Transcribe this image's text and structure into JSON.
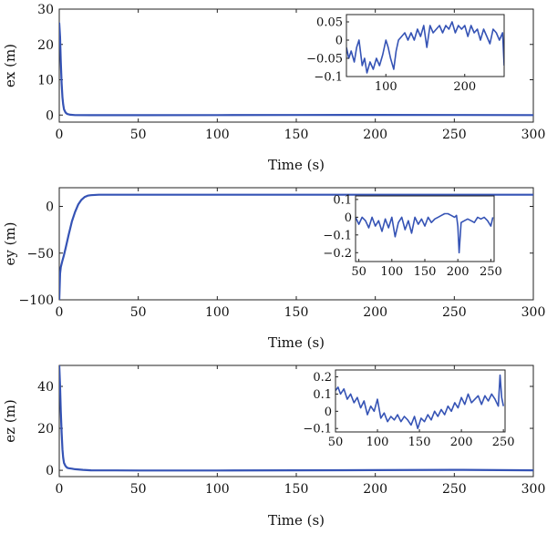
{
  "chart_data": [
    {
      "type": "line",
      "xlabel": "Time (s)",
      "ylabel": "ex (m)",
      "xlim": [
        0,
        300
      ],
      "ylim": [
        -2,
        30
      ],
      "xticks": [
        0,
        50,
        100,
        150,
        200,
        250,
        300
      ],
      "yticks": [
        0,
        10,
        20,
        30
      ],
      "series": [
        {
          "x": [
            0,
            0.5,
            1,
            1.5,
            2,
            2.5,
            3,
            4,
            5,
            7,
            10,
            20,
            50,
            100,
            150,
            200,
            250,
            300
          ],
          "y": [
            26,
            22,
            15,
            9,
            5,
            3,
            1.6,
            0.7,
            0.3,
            0.1,
            0.0,
            -0.05,
            -0.05,
            0.0,
            0.02,
            0.03,
            0.02,
            0.0
          ]
        }
      ],
      "inset": {
        "xlim": [
          50,
          250
        ],
        "ylim": [
          -0.1,
          0.07
        ],
        "xticks": [
          100,
          200
        ],
        "yticks": [
          0.05,
          0,
          -0.05,
          -0.1
        ],
        "yticklabels": [
          "0.05",
          "0",
          "−0.05",
          "−0.1"
        ],
        "series": [
          {
            "x": [
              50,
              53,
              56,
              60,
              63,
              66,
              70,
              73,
              76,
              80,
              84,
              88,
              92,
              96,
              100,
              103,
              106,
              110,
              113,
              116,
              120,
              124,
              128,
              132,
              136,
              140,
              144,
              148,
              152,
              156,
              160,
              164,
              168,
              172,
              176,
              180,
              184,
              188,
              192,
              196,
              200,
              204,
              208,
              212,
              216,
              220,
              224,
              228,
              232,
              236,
              240,
              244,
              248,
              250
            ],
            "y": [
              -0.02,
              -0.05,
              -0.03,
              -0.06,
              -0.02,
              0.0,
              -0.07,
              -0.05,
              -0.09,
              -0.06,
              -0.08,
              -0.05,
              -0.07,
              -0.04,
              0.0,
              -0.02,
              -0.05,
              -0.08,
              -0.03,
              0.0,
              0.01,
              0.02,
              0.0,
              0.02,
              0.0,
              0.03,
              0.01,
              0.04,
              -0.02,
              0.04,
              0.02,
              0.03,
              0.04,
              0.02,
              0.04,
              0.03,
              0.05,
              0.02,
              0.04,
              0.03,
              0.04,
              0.01,
              0.04,
              0.02,
              0.03,
              0.0,
              0.03,
              0.01,
              -0.01,
              0.03,
              0.02,
              0.0,
              0.02,
              -0.07
            ]
          }
        ]
      }
    },
    {
      "type": "line",
      "xlabel": "Time (s)",
      "ylabel": "ey (m)",
      "xlim": [
        0,
        300
      ],
      "ylim": [
        -100,
        20
      ],
      "xticks": [
        0,
        50,
        100,
        150,
        200,
        250,
        300
      ],
      "yticks": [
        0,
        -50,
        -100
      ],
      "yticklabels": [
        "0",
        "−50",
        "−100"
      ],
      "series": [
        {
          "x": [
            0,
            0.5,
            1,
            2,
            3,
            4,
            6,
            8,
            10,
            12,
            14,
            16,
            18,
            20,
            25,
            30,
            50,
            100,
            150,
            200,
            250,
            300
          ],
          "y": [
            -100,
            -72,
            -65,
            -58,
            -52,
            -45,
            -30,
            -16,
            -6,
            2,
            7,
            10,
            11.5,
            12,
            12.5,
            12.5,
            12.5,
            12.5,
            12.5,
            12.5,
            12.5,
            12.5
          ]
        }
      ],
      "inset": {
        "xlim": [
          45,
          255
        ],
        "ylim": [
          -0.25,
          0.12
        ],
        "xticks": [
          50,
          100,
          150,
          200,
          250
        ],
        "yticks": [
          0.1,
          0,
          -0.1,
          -0.2
        ],
        "yticklabels": [
          "0.1",
          "0",
          "−0.1",
          "−0.2"
        ],
        "series": [
          {
            "x": [
              45,
              50,
              55,
              60,
              65,
              70,
              75,
              80,
              85,
              90,
              95,
              100,
              105,
              110,
              115,
              120,
              125,
              130,
              135,
              140,
              145,
              150,
              155,
              160,
              165,
              170,
              175,
              180,
              185,
              190,
              195,
              198,
              200,
              202,
              205,
              210,
              215,
              220,
              225,
              230,
              235,
              240,
              245,
              250,
              253
            ],
            "y": [
              0.0,
              -0.04,
              0.0,
              -0.02,
              -0.06,
              0.0,
              -0.05,
              -0.02,
              -0.08,
              -0.01,
              -0.06,
              0.0,
              -0.11,
              -0.03,
              0.0,
              -0.07,
              -0.02,
              -0.09,
              0.0,
              -0.04,
              -0.01,
              -0.05,
              0.0,
              -0.03,
              -0.01,
              0.0,
              0.01,
              0.02,
              0.02,
              0.01,
              0.0,
              0.01,
              -0.05,
              -0.2,
              -0.03,
              -0.02,
              -0.01,
              -0.02,
              -0.03,
              0.0,
              -0.01,
              0.0,
              -0.02,
              -0.05,
              0.0
            ]
          }
        ]
      }
    },
    {
      "type": "line",
      "xlabel": "Time (s)",
      "ylabel": "ez (m)",
      "xlim": [
        0,
        300
      ],
      "ylim": [
        -3,
        50
      ],
      "xticks": [
        0,
        50,
        100,
        150,
        200,
        250,
        300
      ],
      "yticks": [
        0,
        20,
        40
      ],
      "series": [
        {
          "x": [
            0,
            0.5,
            1,
            1.5,
            2,
            2.5,
            3,
            4,
            5,
            6,
            8,
            10,
            15,
            20,
            50,
            100,
            150,
            200,
            250,
            300
          ],
          "y": [
            50,
            40,
            28,
            18,
            10,
            6,
            3.5,
            2,
            1.2,
            1.0,
            0.8,
            0.5,
            0.2,
            0.0,
            -0.1,
            -0.1,
            0.0,
            0.1,
            0.2,
            0.0
          ]
        }
      ],
      "inset": {
        "xlim": [
          50,
          252
        ],
        "ylim": [
          -0.12,
          0.24
        ],
        "xticks": [
          50,
          100,
          150,
          200,
          250
        ],
        "yticks": [
          0.2,
          0.1,
          0,
          -0.1
        ],
        "yticklabels": [
          "0.2",
          "0.1",
          "0",
          "−0.1"
        ],
        "series": [
          {
            "x": [
              50,
              53,
              56,
              60,
              64,
              68,
              72,
              76,
              80,
              84,
              88,
              92,
              96,
              100,
              104,
              108,
              112,
              116,
              120,
              124,
              128,
              132,
              136,
              140,
              144,
              148,
              152,
              156,
              160,
              164,
              168,
              172,
              176,
              180,
              184,
              188,
              192,
              196,
              200,
              204,
              208,
              212,
              216,
              220,
              224,
              228,
              232,
              236,
              240,
              244,
              246,
              248,
              250
            ],
            "y": [
              0.12,
              0.14,
              0.1,
              0.13,
              0.07,
              0.1,
              0.05,
              0.08,
              0.02,
              0.06,
              -0.02,
              0.03,
              0.0,
              0.07,
              -0.04,
              -0.01,
              -0.06,
              -0.03,
              -0.05,
              -0.02,
              -0.06,
              -0.03,
              -0.05,
              -0.08,
              -0.03,
              -0.1,
              -0.04,
              -0.06,
              -0.02,
              -0.05,
              0.0,
              -0.03,
              0.01,
              -0.02,
              0.03,
              0.0,
              0.05,
              0.02,
              0.08,
              0.04,
              0.1,
              0.05,
              0.07,
              0.09,
              0.04,
              0.09,
              0.06,
              0.1,
              0.07,
              0.03,
              0.21,
              0.08,
              0.03
            ]
          }
        ]
      }
    }
  ]
}
